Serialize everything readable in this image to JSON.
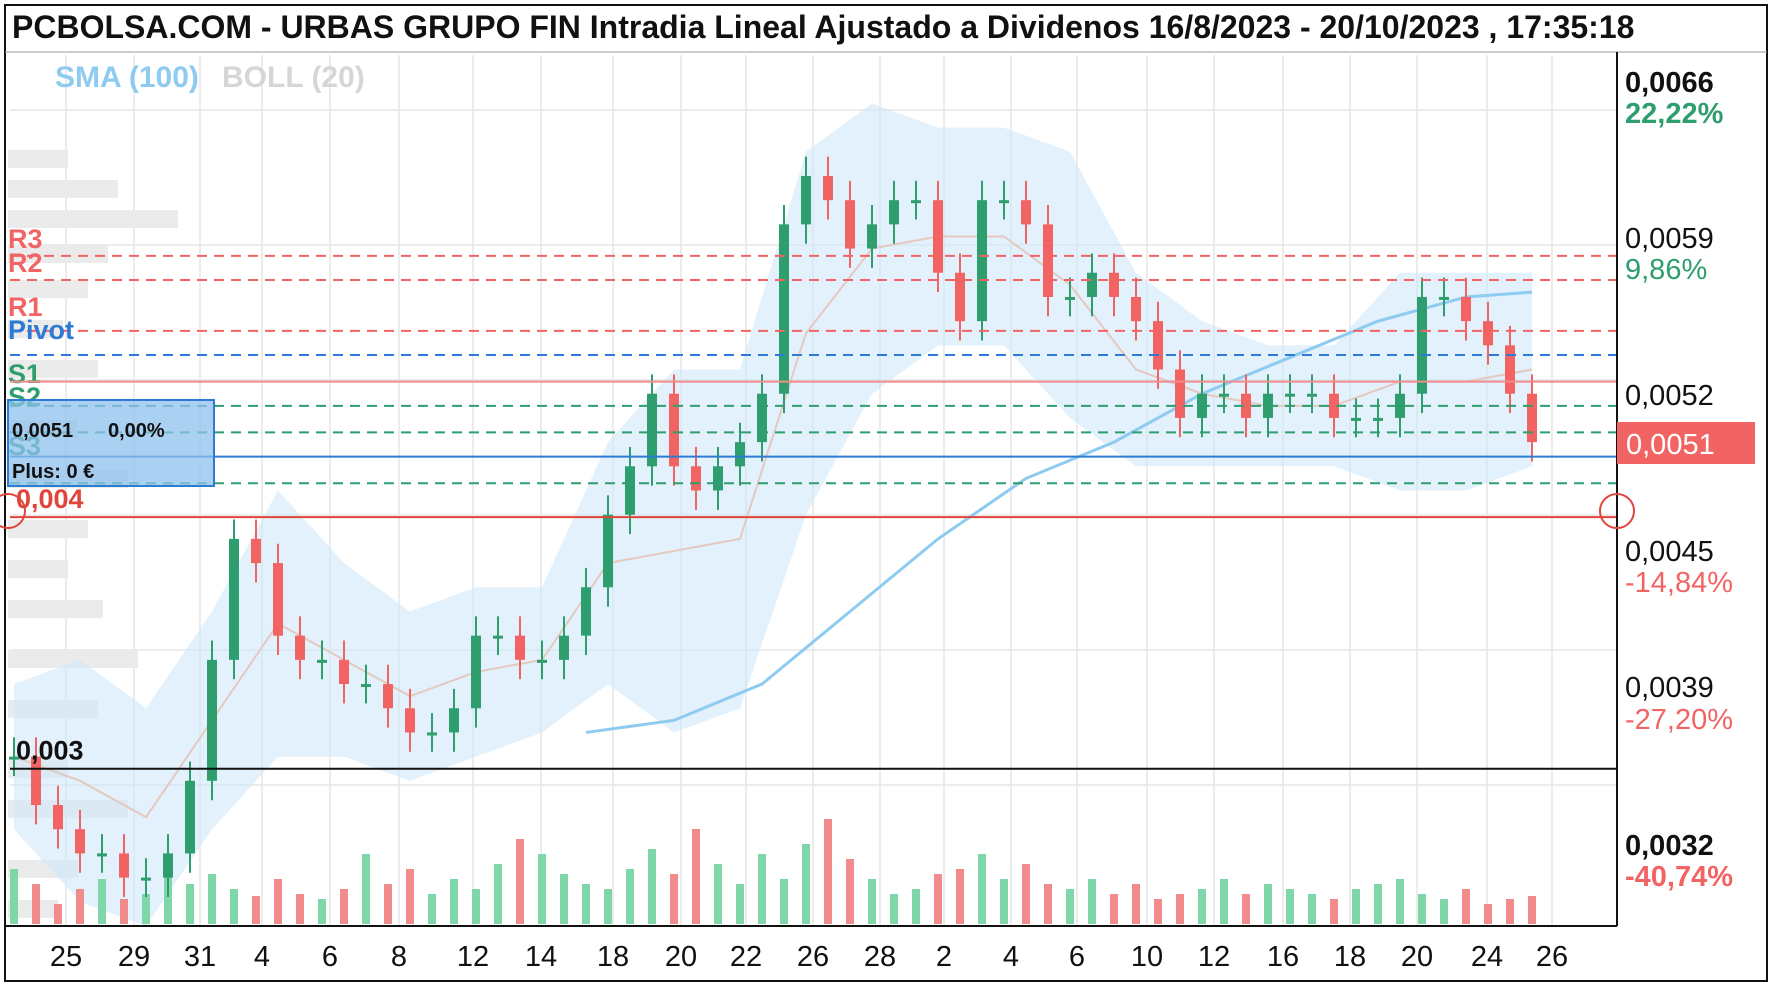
{
  "title": "PCBOLSA.COM - URBAS GRUPO FIN Intradia Lineal Ajustado a Dividenos 16/8/2023 - 20/10/2023 , 17:35:18",
  "legend": {
    "sma": "SMA (100)",
    "boll": "BOLL (20)"
  },
  "colors": {
    "up": "#2e9e6e",
    "down": "#f26464",
    "sma": "#8ecbf0",
    "band": "#cfe8f8",
    "resistance": "#f26464",
    "support": "#2e9e6e",
    "pivot": "#2d7bd4"
  },
  "info_box": {
    "price": "0,0051",
    "change": "0,00%",
    "plus": "Plus: 0 €"
  },
  "levels": {
    "R3": {
      "label": "R3",
      "value": 0.00587
    },
    "R2": {
      "label": "R2",
      "value": 0.00577
    },
    "R1": {
      "label": "R1",
      "value": 0.00556
    },
    "Pivot": {
      "label": "Pivot",
      "value": 0.00546
    },
    "S1": {
      "label": "S1",
      "value": 0.00525
    },
    "S2": {
      "label": "S2",
      "value": 0.00514
    },
    "S3": {
      "label": "S3",
      "value": 0.00493
    }
  },
  "hlines": {
    "h004": {
      "label": "0,004",
      "value": 0.00479
    },
    "h003": {
      "label": "0,003",
      "value": 0.00375
    },
    "current": {
      "value": 0.00504
    },
    "red_top": {
      "value": 0.00535
    }
  },
  "y_axis": [
    {
      "value": 0.0066,
      "label": "0,0066",
      "pct": "22,22%",
      "bold": true,
      "pct_color": "#2e9e6e"
    },
    {
      "value": 0.0059,
      "label": "0,0059",
      "pct": "9,86%",
      "bold": false,
      "pct_color": "#2e9e6e"
    },
    {
      "value": 0.0052,
      "label": "0,0052",
      "pct": "",
      "bold": false,
      "pct_color": "#2e9e6e"
    },
    {
      "value": 0.0045,
      "label": "0,0045",
      "pct": "-14,84%",
      "bold": false,
      "pct_color": "#f26464"
    },
    {
      "value": 0.0039,
      "label": "0,0039",
      "pct": "-27,20%",
      "bold": false,
      "pct_color": "#f26464"
    },
    {
      "value": 0.0032,
      "label": "0,0032",
      "pct": "-40,74%",
      "bold": true,
      "pct_color": "#f26464"
    }
  ],
  "last_price": "0,0051",
  "x_axis": [
    "25",
    "29",
    "31",
    "4",
    "6",
    "8",
    "12",
    "14",
    "18",
    "20",
    "22",
    "26",
    "28",
    "2",
    "4",
    "6",
    "10",
    "12",
    "16",
    "18",
    "20",
    "24",
    "26"
  ],
  "chart_data": {
    "type": "candlestick",
    "title": "PCBOLSA.COM - URBAS GRUPO FIN Intradia Lineal Ajustado a Dividenos 16/8/2023 - 20/10/2023 , 17:35:18",
    "date_range": [
      "16/8/2023",
      "20/10/2023"
    ],
    "x_ticks": [
      "25",
      "29",
      "31",
      "4",
      "6",
      "8",
      "12",
      "14",
      "18",
      "20",
      "22",
      "26",
      "28",
      "2",
      "4",
      "6",
      "10",
      "12",
      "16",
      "18",
      "20",
      "24",
      "26"
    ],
    "ylim": [
      0.0031,
      0.0067
    ],
    "grid": true,
    "series": [
      {
        "name": "Precio",
        "points": [
          {
            "x": 0,
            "v": 0.0038
          },
          {
            "x": 1,
            "v": 0.0036
          },
          {
            "x": 2,
            "v": 0.0035
          },
          {
            "x": 3,
            "v": 0.0034
          },
          {
            "x": 4,
            "v": 0.0034
          },
          {
            "x": 5,
            "v": 0.0033
          },
          {
            "x": 6,
            "v": 0.0033
          },
          {
            "x": 7,
            "v": 0.0034
          },
          {
            "x": 8,
            "v": 0.0037
          },
          {
            "x": 9,
            "v": 0.0042
          },
          {
            "x": 10,
            "v": 0.0047
          },
          {
            "x": 11,
            "v": 0.0046
          },
          {
            "x": 12,
            "v": 0.0043
          },
          {
            "x": 13,
            "v": 0.0042
          },
          {
            "x": 14,
            "v": 0.0042
          },
          {
            "x": 15,
            "v": 0.0041
          },
          {
            "x": 16,
            "v": 0.0041
          },
          {
            "x": 17,
            "v": 0.004
          },
          {
            "x": 18,
            "v": 0.0039
          },
          {
            "x": 19,
            "v": 0.0039
          },
          {
            "x": 20,
            "v": 0.004
          },
          {
            "x": 21,
            "v": 0.0043
          },
          {
            "x": 22,
            "v": 0.0043
          },
          {
            "x": 23,
            "v": 0.0042
          },
          {
            "x": 24,
            "v": 0.0042
          },
          {
            "x": 25,
            "v": 0.0043
          },
          {
            "x": 26,
            "v": 0.0045
          },
          {
            "x": 27,
            "v": 0.0048
          },
          {
            "x": 28,
            "v": 0.005
          },
          {
            "x": 29,
            "v": 0.0053
          },
          {
            "x": 30,
            "v": 0.005
          },
          {
            "x": 31,
            "v": 0.0049
          },
          {
            "x": 32,
            "v": 0.005
          },
          {
            "x": 33,
            "v": 0.0051
          },
          {
            "x": 34,
            "v": 0.0053
          },
          {
            "x": 35,
            "v": 0.006
          },
          {
            "x": 36,
            "v": 0.0062
          },
          {
            "x": 37,
            "v": 0.0061
          },
          {
            "x": 38,
            "v": 0.0059
          },
          {
            "x": 39,
            "v": 0.006
          },
          {
            "x": 40,
            "v": 0.0061
          },
          {
            "x": 41,
            "v": 0.0061
          },
          {
            "x": 42,
            "v": 0.0058
          },
          {
            "x": 43,
            "v": 0.0056
          },
          {
            "x": 44,
            "v": 0.0061
          },
          {
            "x": 45,
            "v": 0.0061
          },
          {
            "x": 46,
            "v": 0.006
          },
          {
            "x": 47,
            "v": 0.0057
          },
          {
            "x": 48,
            "v": 0.0057
          },
          {
            "x": 49,
            "v": 0.0058
          },
          {
            "x": 50,
            "v": 0.0057
          },
          {
            "x": 51,
            "v": 0.0056
          },
          {
            "x": 52,
            "v": 0.0054
          },
          {
            "x": 53,
            "v": 0.0052
          },
          {
            "x": 54,
            "v": 0.0053
          },
          {
            "x": 55,
            "v": 0.0053
          },
          {
            "x": 56,
            "v": 0.0052
          },
          {
            "x": 57,
            "v": 0.0053
          },
          {
            "x": 58,
            "v": 0.0053
          },
          {
            "x": 59,
            "v": 0.0053
          },
          {
            "x": 60,
            "v": 0.0052
          },
          {
            "x": 61,
            "v": 0.0052
          },
          {
            "x": 62,
            "v": 0.0052
          },
          {
            "x": 63,
            "v": 0.0053
          },
          {
            "x": 64,
            "v": 0.0057
          },
          {
            "x": 65,
            "v": 0.0057
          },
          {
            "x": 66,
            "v": 0.0056
          },
          {
            "x": 67,
            "v": 0.0055
          },
          {
            "x": 68,
            "v": 0.0053
          },
          {
            "x": 69,
            "v": 0.0051
          }
        ]
      },
      {
        "name": "SMA (100)",
        "points": [
          {
            "x": 26,
            "v": 0.0039
          },
          {
            "x": 30,
            "v": 0.00395
          },
          {
            "x": 34,
            "v": 0.0041
          },
          {
            "x": 38,
            "v": 0.0044
          },
          {
            "x": 42,
            "v": 0.0047
          },
          {
            "x": 46,
            "v": 0.00495
          },
          {
            "x": 50,
            "v": 0.0051
          },
          {
            "x": 54,
            "v": 0.0053
          },
          {
            "x": 58,
            "v": 0.00545
          },
          {
            "x": 62,
            "v": 0.0056
          },
          {
            "x": 66,
            "v": 0.0057
          },
          {
            "x": 69,
            "v": 0.00572
          }
        ]
      },
      {
        "name": "BOLL (20)",
        "upper": [
          {
            "x": 0,
            "v": 0.0041
          },
          {
            "x": 3,
            "v": 0.0042
          },
          {
            "x": 6,
            "v": 0.004
          },
          {
            "x": 9,
            "v": 0.0044
          },
          {
            "x": 12,
            "v": 0.0049
          },
          {
            "x": 15,
            "v": 0.0046
          },
          {
            "x": 18,
            "v": 0.0044
          },
          {
            "x": 21,
            "v": 0.0045
          },
          {
            "x": 24,
            "v": 0.0045
          },
          {
            "x": 27,
            "v": 0.0051
          },
          {
            "x": 30,
            "v": 0.0054
          },
          {
            "x": 33,
            "v": 0.0054
          },
          {
            "x": 36,
            "v": 0.0063
          },
          {
            "x": 39,
            "v": 0.0065
          },
          {
            "x": 42,
            "v": 0.0064
          },
          {
            "x": 45,
            "v": 0.0064
          },
          {
            "x": 48,
            "v": 0.0063
          },
          {
            "x": 51,
            "v": 0.0058
          },
          {
            "x": 54,
            "v": 0.0056
          },
          {
            "x": 57,
            "v": 0.0055
          },
          {
            "x": 60,
            "v": 0.0055
          },
          {
            "x": 63,
            "v": 0.0058
          },
          {
            "x": 66,
            "v": 0.0058
          },
          {
            "x": 69,
            "v": 0.0058
          }
        ],
        "lower": [
          {
            "x": 0,
            "v": 0.0035
          },
          {
            "x": 3,
            "v": 0.0032
          },
          {
            "x": 6,
            "v": 0.0031
          },
          {
            "x": 9,
            "v": 0.0035
          },
          {
            "x": 12,
            "v": 0.0038
          },
          {
            "x": 15,
            "v": 0.0038
          },
          {
            "x": 18,
            "v": 0.0037
          },
          {
            "x": 21,
            "v": 0.0038
          },
          {
            "x": 24,
            "v": 0.0039
          },
          {
            "x": 27,
            "v": 0.0041
          },
          {
            "x": 30,
            "v": 0.0039
          },
          {
            "x": 33,
            "v": 0.004
          },
          {
            "x": 36,
            "v": 0.0048
          },
          {
            "x": 39,
            "v": 0.0053
          },
          {
            "x": 42,
            "v": 0.0055
          },
          {
            "x": 45,
            "v": 0.0055
          },
          {
            "x": 48,
            "v": 0.0052
          },
          {
            "x": 51,
            "v": 0.005
          },
          {
            "x": 54,
            "v": 0.005
          },
          {
            "x": 57,
            "v": 0.005
          },
          {
            "x": 60,
            "v": 0.005
          },
          {
            "x": 63,
            "v": 0.0049
          },
          {
            "x": 66,
            "v": 0.0049
          },
          {
            "x": 69,
            "v": 0.005
          }
        ]
      }
    ]
  }
}
